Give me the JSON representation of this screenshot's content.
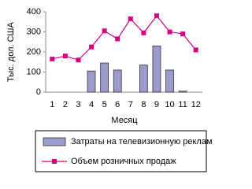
{
  "chart_data": {
    "type": "combo",
    "y_label": "Тыс. дол. США",
    "x_label": "Месяц",
    "categories": [
      "1",
      "2",
      "3",
      "4",
      "5",
      "6",
      "7",
      "8",
      "9",
      "10",
      "11",
      "12"
    ],
    "series": [
      {
        "name": "Затраты на телевизионную рекламу",
        "type": "bar",
        "color": "#9c9ccc",
        "values": [
          0,
          0,
          0,
          105,
          145,
          110,
          0,
          135,
          230,
          110,
          5,
          0
        ]
      },
      {
        "name": "Объем розничных продаж",
        "type": "line",
        "color": "#d6007f",
        "values": [
          165,
          180,
          160,
          225,
          305,
          265,
          365,
          295,
          380,
          300,
          290,
          210
        ]
      }
    ],
    "ylim": [
      0,
      400
    ],
    "yticks": [
      0,
      100,
      200,
      300,
      400
    ],
    "grid": false,
    "legend": "bottom"
  }
}
